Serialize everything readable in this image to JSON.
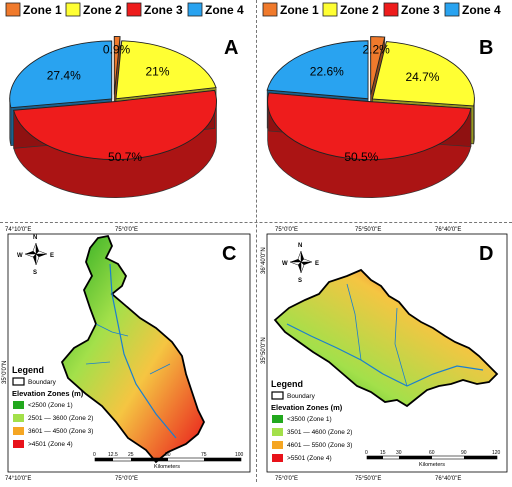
{
  "panels": {
    "A": {
      "letter": "A"
    },
    "B": {
      "letter": "B"
    },
    "C": {
      "letter": "C"
    },
    "D": {
      "letter": "D"
    }
  },
  "chart_data": [
    {
      "type": "pie",
      "panel": "A",
      "categories": [
        "Zone 1",
        "Zone 2",
        "Zone 3",
        "Zone 4"
      ],
      "values": [
        0.9,
        21,
        50.7,
        27.4
      ],
      "labels": [
        "0.9%",
        "21%",
        "50.7%",
        "27.4%"
      ],
      "colors": [
        "#f07a2c",
        "#ffff33",
        "#ee1c1c",
        "#29a3f0"
      ],
      "exploded": "Zone 1",
      "style": "3d"
    },
    {
      "type": "pie",
      "panel": "B",
      "categories": [
        "Zone 1",
        "Zone 2",
        "Zone 3",
        "Zone 4"
      ],
      "values": [
        2.2,
        24.7,
        50.5,
        22.6
      ],
      "labels": [
        "2.2%",
        "24.7%",
        "50.5%",
        "22.6%"
      ],
      "colors": [
        "#f07a2c",
        "#ffff33",
        "#ee1c1c",
        "#29a3f0"
      ],
      "exploded": "Zone 1",
      "style": "3d"
    }
  ],
  "maps": {
    "C": {
      "top_ticks": [
        "74°10'0\"E",
        "75°0'0\"E"
      ],
      "bottom_ticks": [
        "74°10'0\"E",
        "75°0'0\"E"
      ],
      "left_tick": "35°0'0\"N",
      "compass": {
        "N": "N",
        "S": "S",
        "E": "E",
        "W": "W"
      },
      "legend": {
        "title": "Legend",
        "boundary": "Boundary",
        "zones_title": "Elevation Zones (m)",
        "items": [
          {
            "label": "<2500 (Zone 1)",
            "color": "#22a81e"
          },
          {
            "label": "2501 — 3600 (Zone 2)",
            "color": "#a3e04a"
          },
          {
            "label": "3601 — 4500 (Zone 3)",
            "color": "#f5a623"
          },
          {
            "label": ">4501 (Zone 4)",
            "color": "#e8121a"
          }
        ]
      },
      "scale": {
        "ticks": [
          "0",
          "12.5",
          "25",
          "50",
          "75",
          "100"
        ],
        "unit": "Kilometers"
      }
    },
    "D": {
      "top_ticks": [
        "75°0'0\"E",
        "75°50'0\"E",
        "76°40'0\"E"
      ],
      "bottom_ticks": [
        "75°0'0\"E",
        "75°50'0\"E",
        "76°40'0\"E"
      ],
      "left_ticks": [
        "36°40'0\"N",
        "35°50'0\"N"
      ],
      "compass": {
        "N": "N",
        "S": "S",
        "E": "E",
        "W": "W"
      },
      "legend": {
        "title": "Legend",
        "boundary": "Boundary",
        "zones_title": "Elevation Zones (m)",
        "items": [
          {
            "label": "<3500 (Zone 1)",
            "color": "#22a81e"
          },
          {
            "label": "3501 — 4600 (Zone 2)",
            "color": "#a3e04a"
          },
          {
            "label": "4601 — 5500 (Zone 3)",
            "color": "#f5a623"
          },
          {
            "label": ">5501 (Zone 4)",
            "color": "#e8121a"
          }
        ]
      },
      "scale": {
        "ticks": [
          "0",
          "15",
          "30",
          "60",
          "90",
          "120"
        ],
        "unit": "Kilometers"
      }
    }
  }
}
